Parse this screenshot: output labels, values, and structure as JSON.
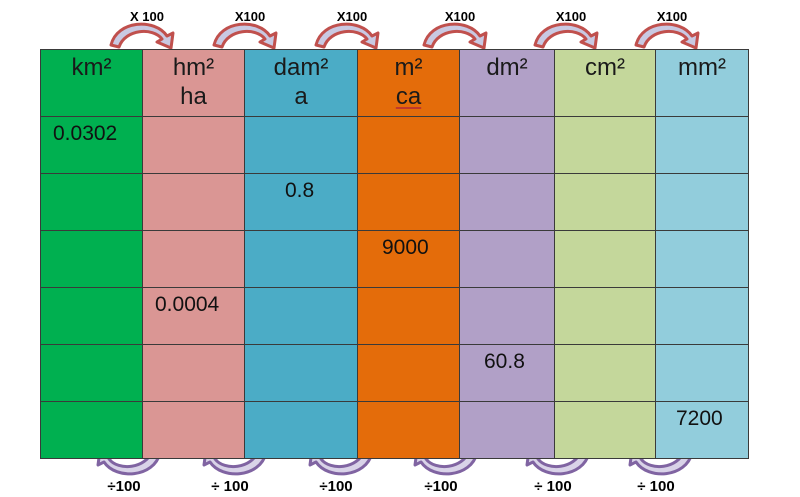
{
  "columns": [
    {
      "line1": "km²",
      "line2": "",
      "color": "#00b050",
      "value": "0.0302"
    },
    {
      "line1": "hm²",
      "line2": "ha",
      "color": "#da9694",
      "value": "0.0004"
    },
    {
      "line1": "dam²",
      "line2": "a",
      "color": "#4bacc6",
      "value": "0.8"
    },
    {
      "line1": "m²",
      "line2": "ca",
      "color": "#e46c0a",
      "value": "9000"
    },
    {
      "line1": "dm²",
      "line2": "",
      "color": "#b1a0c7",
      "value": "60.8"
    },
    {
      "line1": "cm²",
      "line2": "",
      "color": "#c4d79b",
      "value": ""
    },
    {
      "line1": "mm²",
      "line2": "",
      "color": "#92cddc",
      "value": "7200"
    }
  ],
  "rows": [
    [
      "0.0302",
      "",
      "",
      "",
      "",
      "",
      ""
    ],
    [
      "",
      "",
      "0.8",
      "",
      "",
      "",
      ""
    ],
    [
      "",
      "",
      "",
      "9000",
      "",
      "",
      ""
    ],
    [
      "",
      "0.0004",
      "",
      "",
      "",
      "",
      ""
    ],
    [
      "",
      "",
      "",
      "",
      "60.8",
      "",
      ""
    ],
    [
      "",
      "",
      "",
      "",
      "",
      "",
      "7200"
    ]
  ],
  "multiply_labels": [
    "X 100",
    "X100",
    "X100",
    "X100",
    "X100",
    "X100"
  ],
  "divide_labels": [
    "÷100",
    "÷ 100",
    "÷100",
    "÷100",
    "÷ 100",
    "÷ 100"
  ],
  "colors": {
    "mult_arrow_fill": "#c9c9e2",
    "mult_arrow_stroke": "#c0504d",
    "div_arrow_fill": "#d9d3e8",
    "div_arrow_stroke": "#8064a2"
  }
}
